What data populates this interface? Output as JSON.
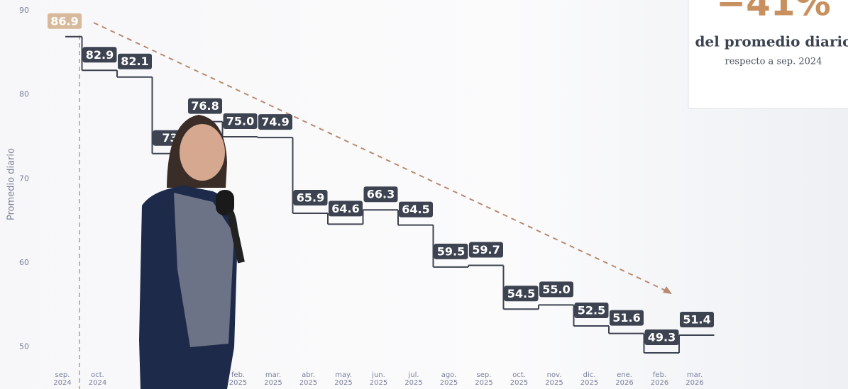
{
  "chart_data": {
    "type": "step",
    "y_label": "Promedio diario",
    "categories": [
      "sep.\n2024",
      "oct.\n2024",
      null,
      null,
      null,
      "feb.\n2025",
      "mar.\n2025",
      "abr.\n2025",
      "may.\n2025",
      "jun.\n2025",
      "jul.\n2025",
      "ago.\n2025",
      "sep.\n2025",
      "oct.\n2025",
      "nov.\n2025",
      "dic.\n2025",
      "ene.\n2026",
      "feb.\n2026",
      "mar.\n2026"
    ],
    "values": [
      86.9,
      82.9,
      82.1,
      73,
      76.8,
      75.0,
      74.9,
      65.9,
      64.6,
      66.3,
      64.5,
      59.5,
      59.7,
      54.5,
      55.0,
      52.5,
      51.6,
      49.3,
      51.4
    ],
    "value_labels": [
      "86.9",
      "82.9",
      "82.1",
      "73",
      "76.8",
      "75.0",
      "74.9",
      "65.9",
      "64.6",
      "66.3",
      "64.5",
      "59.5",
      "59.7",
      "54.5",
      "55.0",
      "52.5",
      "51.6",
      "49.3",
      "51.4"
    ],
    "color": "#3d4350",
    "highlight_color": "#d8b99b",
    "ylim": [
      45,
      90
    ],
    "yticks": [
      50,
      60,
      70,
      80,
      90
    ],
    "annotations": [
      "−41%",
      "del promedio diario",
      "respecto a sep. 2024"
    ]
  }
}
